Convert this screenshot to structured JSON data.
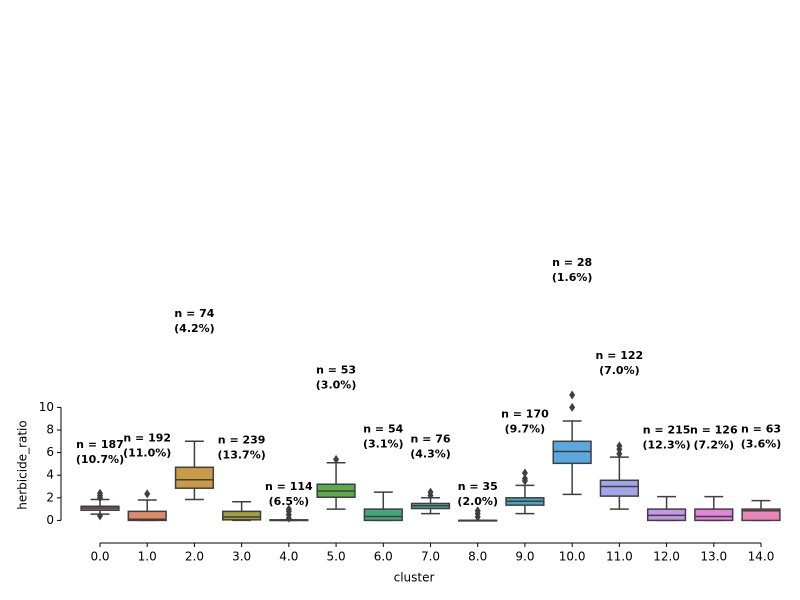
{
  "chart_data": {
    "type": "box",
    "x_label": "cluster",
    "y_label": "herbicide_ratio",
    "categories": [
      "0.0",
      "1.0",
      "2.0",
      "3.0",
      "4.0",
      "5.0",
      "6.0",
      "7.0",
      "8.0",
      "9.0",
      "10.0",
      "11.0",
      "12.0",
      "13.0",
      "14.0"
    ],
    "boxes": [
      {
        "color": "#c07f83",
        "whislo": 0.55,
        "q1": 0.9,
        "median": 1.1,
        "q3": 1.25,
        "whishi": 1.85,
        "fliers": [
          0.4,
          2.0,
          2.2,
          2.4
        ]
      },
      {
        "color": "#e08a6a",
        "whislo": 0,
        "q1": 0,
        "median": 0.1,
        "q3": 0.8,
        "whishi": 1.8,
        "fliers": [
          2.35
        ]
      },
      {
        "color": "#c99a47",
        "whislo": 1.85,
        "q1": 2.85,
        "median": 3.6,
        "q3": 4.7,
        "whishi": 7.0,
        "fliers": []
      },
      {
        "color": "#a5a03d",
        "whislo": 0,
        "q1": 0.05,
        "median": 0.3,
        "q3": 0.8,
        "whishi": 1.65,
        "fliers": []
      },
      {
        "color": "#8da83e",
        "whislo": 0,
        "q1": 0,
        "median": 0,
        "q3": 0.05,
        "whishi": 0.05,
        "fliers": [
          0.2,
          0.5,
          0.8,
          1.0
        ]
      },
      {
        "color": "#5aaa46",
        "whislo": 1.0,
        "q1": 2.05,
        "median": 2.6,
        "q3": 3.2,
        "whishi": 5.1,
        "fliers": [
          5.4
        ]
      },
      {
        "color": "#43a97c",
        "whislo": 0,
        "q1": 0,
        "median": 0.35,
        "q3": 1.0,
        "whishi": 2.5,
        "fliers": []
      },
      {
        "color": "#48a796",
        "whislo": 0.6,
        "q1": 1.05,
        "median": 1.3,
        "q3": 1.5,
        "whishi": 2.0,
        "fliers": [
          2.2,
          2.5
        ]
      },
      {
        "color": "#47a6aa",
        "whislo": 0,
        "q1": 0,
        "median": 0,
        "q3": 0,
        "whishi": 0,
        "fliers": [
          0.3,
          0.6,
          0.85
        ]
      },
      {
        "color": "#4aa5bd",
        "whislo": 0.6,
        "q1": 1.35,
        "median": 1.7,
        "q3": 2.0,
        "whishi": 3.1,
        "fliers": [
          3.5,
          3.7,
          4.2
        ]
      },
      {
        "color": "#5ba8e0",
        "whislo": 2.3,
        "q1": 5.05,
        "median": 6.1,
        "q3": 7.0,
        "whishi": 8.8,
        "fliers": [
          10.0,
          11.1
        ]
      },
      {
        "color": "#a2a6e9",
        "whislo": 1.0,
        "q1": 2.15,
        "median": 3.0,
        "q3": 3.55,
        "whishi": 5.6,
        "fliers": [
          5.9,
          6.3,
          6.6
        ]
      },
      {
        "color": "#c598e6",
        "whislo": 0,
        "q1": 0,
        "median": 0.45,
        "q3": 1.0,
        "whishi": 2.1,
        "fliers": []
      },
      {
        "color": "#e184da",
        "whislo": 0,
        "q1": 0,
        "median": 0.35,
        "q3": 1.0,
        "whishi": 2.1,
        "fliers": []
      },
      {
        "color": "#e985b8",
        "whislo": 0,
        "q1": 0,
        "median": 0.85,
        "q3": 1.0,
        "whishi": 1.75,
        "fliers": []
      }
    ],
    "annotations": [
      {
        "lines": [
          "n = 187",
          "(10.7%)"
        ],
        "y": 6.0
      },
      {
        "lines": [
          "n = 192",
          "(11.0%)"
        ],
        "y": 6.6
      },
      {
        "lines": [
          "n = 74",
          "(4.2%)"
        ],
        "y": 17.6
      },
      {
        "lines": [
          "n = 239",
          "(13.7%)"
        ],
        "y": 6.4
      },
      {
        "lines": [
          "n = 114",
          "(6.5%)"
        ],
        "y": 2.3
      },
      {
        "lines": [
          "n = 53",
          "(3.0%)"
        ],
        "y": 12.6
      },
      {
        "lines": [
          "n = 54",
          "(3.1%)"
        ],
        "y": 7.4
      },
      {
        "lines": [
          "n = 76",
          "(4.3%)"
        ],
        "y": 6.5
      },
      {
        "lines": [
          "n = 35",
          "(2.0%)"
        ],
        "y": 2.3
      },
      {
        "lines": [
          "n = 170",
          "(9.7%)"
        ],
        "y": 8.7
      },
      {
        "lines": [
          "n = 28",
          "(1.6%)"
        ],
        "y": 22.1
      },
      {
        "lines": [
          "n = 122",
          "(7.0%)"
        ],
        "y": 13.9
      },
      {
        "lines": [
          "n = 215",
          "(12.3%)"
        ],
        "y": 7.3
      },
      {
        "lines": [
          "n = 126",
          "(7.2%)"
        ],
        "y": 7.3
      },
      {
        "lines": [
          "n = 63",
          "(3.6%)"
        ],
        "y": 7.4
      }
    ],
    "ylim": [
      -2,
      40
    ],
    "yticks": [
      0,
      2,
      4,
      6,
      8,
      10
    ]
  }
}
